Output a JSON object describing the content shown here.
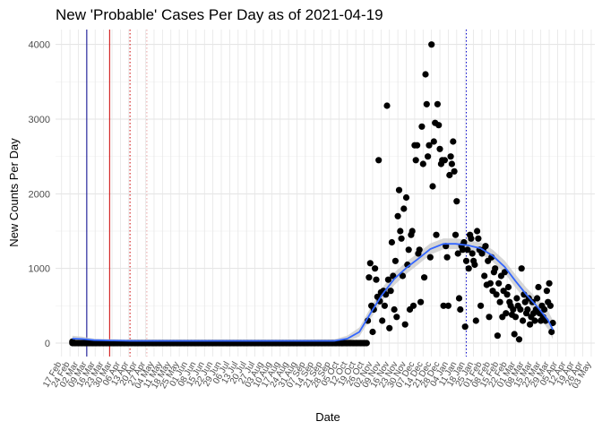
{
  "chart_data": {
    "type": "scatter",
    "title": "New 'Probable' Cases Per Day as of 2021-04-19",
    "xlabel": "Date",
    "ylabel": "New Counts Per Day",
    "xlim": [
      "2020-02-12",
      "2021-05-06"
    ],
    "ylim": [
      -180,
      4200
    ],
    "y_ticks": [
      0,
      1000,
      2000,
      3000,
      4000
    ],
    "x_ticks": [
      "17 Feb",
      "24 Feb",
      "02 Mar",
      "09 Mar",
      "16 Mar",
      "23 Mar",
      "30 Mar",
      "06 Apr",
      "13 Apr",
      "20 Apr",
      "27 Apr",
      "04 May",
      "11 May",
      "18 May",
      "25 May",
      "01 Jun",
      "08 Jun",
      "15 Jun",
      "22 Jun",
      "29 Jun",
      "06 Jul",
      "13 Jul",
      "20 Jul",
      "27 Jul",
      "03 Aug",
      "10 Aug",
      "17 Aug",
      "24 Aug",
      "31 Aug",
      "07 Sep",
      "14 Sep",
      "21 Sep",
      "28 Sep",
      "05 Oct",
      "12 Oct",
      "19 Oct",
      "26 Oct",
      "02 Nov",
      "09 Nov",
      "16 Nov",
      "23 Nov",
      "30 Nov",
      "07 Dec",
      "14 Dec",
      "21 Dec",
      "28 Dec",
      "04 Jan",
      "11 Jan",
      "18 Jan",
      "25 Jan",
      "01 Feb",
      "08 Feb",
      "15 Feb",
      "22 Feb",
      "01 Mar",
      "08 Mar",
      "15 Mar",
      "22 Mar",
      "29 Mar",
      "05 Apr",
      "12 Apr",
      "19 Apr",
      "26 Apr",
      "03 May"
    ],
    "x_tick_dates": [
      "2020-02-17",
      "2020-02-24",
      "2020-03-02",
      "2020-03-09",
      "2020-03-16",
      "2020-03-23",
      "2020-03-30",
      "2020-04-06",
      "2020-04-13",
      "2020-04-20",
      "2020-04-27",
      "2020-05-04",
      "2020-05-11",
      "2020-05-18",
      "2020-05-25",
      "2020-06-01",
      "2020-06-08",
      "2020-06-15",
      "2020-06-22",
      "2020-06-29",
      "2020-07-06",
      "2020-07-13",
      "2020-07-20",
      "2020-07-27",
      "2020-08-03",
      "2020-08-10",
      "2020-08-17",
      "2020-08-24",
      "2020-08-31",
      "2020-09-07",
      "2020-09-14",
      "2020-09-21",
      "2020-09-28",
      "2020-10-05",
      "2020-10-12",
      "2020-10-19",
      "2020-10-26",
      "2020-11-02",
      "2020-11-09",
      "2020-11-16",
      "2020-11-23",
      "2020-11-30",
      "2020-12-07",
      "2020-12-14",
      "2020-12-21",
      "2020-12-28",
      "2021-01-04",
      "2021-01-11",
      "2021-01-18",
      "2021-01-25",
      "2021-02-01",
      "2021-02-08",
      "2021-02-15",
      "2021-02-22",
      "2021-03-01",
      "2021-03-08",
      "2021-03-15",
      "2021-03-22",
      "2021-03-29",
      "2021-04-05",
      "2021-04-12",
      "2021-04-19",
      "2021-04-26",
      "2021-05-03"
    ],
    "grid": true,
    "vertical_lines": [
      {
        "date": "2020-03-09",
        "color": "#00008b",
        "style": "solid"
      },
      {
        "date": "2020-03-28",
        "color": "#cc0000",
        "style": "solid"
      },
      {
        "date": "2020-04-14",
        "color": "#cc0000",
        "style": "dotted"
      },
      {
        "date": "2020-04-28",
        "color": "#e8a0a0",
        "style": "dotted"
      },
      {
        "date": "2021-01-19",
        "color": "#0000cc",
        "style": "dotted"
      }
    ],
    "points": {
      "baseline_start": "2020-02-26",
      "baseline_end": "2020-10-28",
      "baseline_value": 0,
      "early": [
        [
          "2020-02-26",
          20
        ],
        [
          "2020-03-12",
          10
        ]
      ],
      "series": [
        [
          "2020-10-29",
          300
        ],
        [
          "2020-10-30",
          880
        ],
        [
          "2020-10-31",
          1070
        ],
        [
          "2020-11-01",
          500
        ],
        [
          "2020-11-02",
          150
        ],
        [
          "2020-11-03",
          450
        ],
        [
          "2020-11-04",
          1000
        ],
        [
          "2020-11-05",
          850
        ],
        [
          "2020-11-06",
          620
        ],
        [
          "2020-11-07",
          2450
        ],
        [
          "2020-11-08",
          560
        ],
        [
          "2020-11-09",
          680
        ],
        [
          "2020-11-10",
          300
        ],
        [
          "2020-11-11",
          700
        ],
        [
          "2020-11-12",
          500
        ],
        [
          "2020-11-13",
          650
        ],
        [
          "2020-11-14",
          3180
        ],
        [
          "2020-11-15",
          850
        ],
        [
          "2020-11-16",
          200
        ],
        [
          "2020-11-17",
          700
        ],
        [
          "2020-11-18",
          1350
        ],
        [
          "2020-11-19",
          900
        ],
        [
          "2020-11-20",
          450
        ],
        [
          "2020-11-21",
          1100
        ],
        [
          "2020-11-22",
          350
        ],
        [
          "2020-11-23",
          1700
        ],
        [
          "2020-11-24",
          2050
        ],
        [
          "2020-11-25",
          1500
        ],
        [
          "2020-11-26",
          1400
        ],
        [
          "2020-11-27",
          900
        ],
        [
          "2020-11-28",
          1800
        ],
        [
          "2020-11-29",
          250
        ],
        [
          "2020-11-30",
          1950
        ],
        [
          "2020-12-01",
          1050
        ],
        [
          "2020-12-02",
          1250
        ],
        [
          "2020-12-03",
          450
        ],
        [
          "2020-12-04",
          1450
        ],
        [
          "2020-12-05",
          1500
        ],
        [
          "2020-12-06",
          500
        ],
        [
          "2020-12-07",
          2650
        ],
        [
          "2020-12-08",
          2450
        ],
        [
          "2020-12-09",
          2650
        ],
        [
          "2020-12-10",
          1200
        ],
        [
          "2020-12-11",
          1250
        ],
        [
          "2020-12-12",
          550
        ],
        [
          "2020-12-13",
          2900
        ],
        [
          "2020-12-14",
          2400
        ],
        [
          "2020-12-15",
          880
        ],
        [
          "2020-12-16",
          3600
        ],
        [
          "2020-12-17",
          3200
        ],
        [
          "2020-12-18",
          2500
        ],
        [
          "2020-12-19",
          2650
        ],
        [
          "2020-12-20",
          1150
        ],
        [
          "2020-12-21",
          4000
        ],
        [
          "2020-12-22",
          2100
        ],
        [
          "2020-12-23",
          2700
        ],
        [
          "2020-12-24",
          2950
        ],
        [
          "2020-12-25",
          1450
        ],
        [
          "2020-12-26",
          3200
        ],
        [
          "2020-12-27",
          2920
        ],
        [
          "2020-12-28",
          2600
        ],
        [
          "2020-12-29",
          2400
        ],
        [
          "2020-12-30",
          2450
        ],
        [
          "2020-12-31",
          500
        ],
        [
          "2021-01-01",
          2450
        ],
        [
          "2021-01-02",
          1300
        ],
        [
          "2021-01-03",
          1150
        ],
        [
          "2021-01-04",
          500
        ],
        [
          "2021-01-05",
          2250
        ],
        [
          "2021-01-06",
          2500
        ],
        [
          "2021-01-07",
          2400
        ],
        [
          "2021-01-08",
          2700
        ],
        [
          "2021-01-09",
          2300
        ],
        [
          "2021-01-10",
          1450
        ],
        [
          "2021-01-11",
          1900
        ],
        [
          "2021-01-12",
          1200
        ],
        [
          "2021-01-13",
          600
        ],
        [
          "2021-01-14",
          450
        ],
        [
          "2021-01-15",
          1300
        ],
        [
          "2021-01-16",
          1250
        ],
        [
          "2021-01-17",
          1350
        ],
        [
          "2021-01-18",
          220
        ],
        [
          "2021-01-19",
          1100
        ],
        [
          "2021-01-20",
          1250
        ],
        [
          "2021-01-21",
          1000
        ],
        [
          "2021-01-22",
          1450
        ],
        [
          "2021-01-23",
          1400
        ],
        [
          "2021-01-24",
          1200
        ],
        [
          "2021-01-25",
          1100
        ],
        [
          "2021-01-26",
          1050
        ],
        [
          "2021-01-27",
          300
        ],
        [
          "2021-01-28",
          1500
        ],
        [
          "2021-01-29",
          1400
        ],
        [
          "2021-01-30",
          1250
        ],
        [
          "2021-01-31",
          500
        ],
        [
          "2021-02-01",
          1200
        ],
        [
          "2021-02-02",
          1250
        ],
        [
          "2021-02-03",
          900
        ],
        [
          "2021-02-04",
          1300
        ],
        [
          "2021-02-05",
          780
        ],
        [
          "2021-02-06",
          1100
        ],
        [
          "2021-02-07",
          350
        ],
        [
          "2021-02-08",
          800
        ],
        [
          "2021-02-09",
          1150
        ],
        [
          "2021-02-10",
          700
        ],
        [
          "2021-02-11",
          950
        ],
        [
          "2021-02-12",
          1000
        ],
        [
          "2021-02-13",
          650
        ],
        [
          "2021-02-14",
          100
        ],
        [
          "2021-02-15",
          800
        ],
        [
          "2021-02-16",
          550
        ],
        [
          "2021-02-17",
          900
        ],
        [
          "2021-02-18",
          350
        ],
        [
          "2021-02-19",
          700
        ],
        [
          "2021-02-20",
          950
        ],
        [
          "2021-02-21",
          400
        ],
        [
          "2021-02-22",
          650
        ],
        [
          "2021-02-23",
          750
        ],
        [
          "2021-02-24",
          550
        ],
        [
          "2021-02-25",
          500
        ],
        [
          "2021-02-26",
          380
        ],
        [
          "2021-02-27",
          450
        ],
        [
          "2021-02-28",
          120
        ],
        [
          "2021-03-01",
          350
        ],
        [
          "2021-03-02",
          600
        ],
        [
          "2021-03-03",
          500
        ],
        [
          "2021-03-04",
          50
        ],
        [
          "2021-03-05",
          450
        ],
        [
          "2021-03-06",
          1000
        ],
        [
          "2021-03-07",
          300
        ],
        [
          "2021-03-08",
          650
        ],
        [
          "2021-03-09",
          550
        ],
        [
          "2021-03-10",
          400
        ],
        [
          "2021-03-11",
          450
        ],
        [
          "2021-03-12",
          600
        ],
        [
          "2021-03-13",
          250
        ],
        [
          "2021-03-14",
          350
        ],
        [
          "2021-03-15",
          550
        ],
        [
          "2021-03-16",
          400
        ],
        [
          "2021-03-17",
          300
        ],
        [
          "2021-03-18",
          450
        ],
        [
          "2021-03-19",
          600
        ],
        [
          "2021-03-20",
          750
        ],
        [
          "2021-03-21",
          400
        ],
        [
          "2021-03-22",
          300
        ],
        [
          "2021-03-23",
          500
        ],
        [
          "2021-03-24",
          350
        ],
        [
          "2021-03-25",
          450
        ],
        [
          "2021-03-26",
          300
        ],
        [
          "2021-03-27",
          700
        ],
        [
          "2021-03-28",
          550
        ],
        [
          "2021-03-29",
          800
        ],
        [
          "2021-03-30",
          500
        ],
        [
          "2021-03-31",
          150
        ],
        [
          "2021-04-01",
          270
        ]
      ]
    },
    "smooth": {
      "color": "#3366ff",
      "points": [
        [
          "2020-02-26",
          60
        ],
        [
          "2020-03-05",
          55
        ],
        [
          "2020-03-15",
          40
        ],
        [
          "2020-03-30",
          35
        ],
        [
          "2020-04-15",
          30
        ],
        [
          "2020-06-01",
          30
        ],
        [
          "2020-09-01",
          30
        ],
        [
          "2020-10-01",
          30
        ],
        [
          "2020-10-12",
          60
        ],
        [
          "2020-10-22",
          150
        ],
        [
          "2020-11-01",
          420
        ],
        [
          "2020-11-10",
          650
        ],
        [
          "2020-11-20",
          860
        ],
        [
          "2020-12-01",
          1020
        ],
        [
          "2020-12-10",
          1130
        ],
        [
          "2020-12-20",
          1260
        ],
        [
          "2020-12-31",
          1330
        ],
        [
          "2021-01-10",
          1330
        ],
        [
          "2021-01-20",
          1310
        ],
        [
          "2021-01-31",
          1270
        ],
        [
          "2021-02-10",
          1170
        ],
        [
          "2021-02-20",
          1020
        ],
        [
          "2021-03-01",
          830
        ],
        [
          "2021-03-10",
          650
        ],
        [
          "2021-03-20",
          470
        ],
        [
          "2021-03-28",
          310
        ],
        [
          "2021-04-01",
          180
        ]
      ],
      "band_half_width": [
        [
          "2020-02-26",
          40
        ],
        [
          "2020-03-15",
          20
        ],
        [
          "2020-04-15",
          15
        ],
        [
          "2020-09-01",
          15
        ],
        [
          "2020-10-01",
          20
        ],
        [
          "2020-10-22",
          60
        ],
        [
          "2020-11-10",
          90
        ],
        [
          "2020-12-01",
          80
        ],
        [
          "2021-01-10",
          70
        ],
        [
          "2021-02-10",
          80
        ],
        [
          "2021-03-10",
          90
        ],
        [
          "2021-04-01",
          130
        ]
      ]
    }
  }
}
